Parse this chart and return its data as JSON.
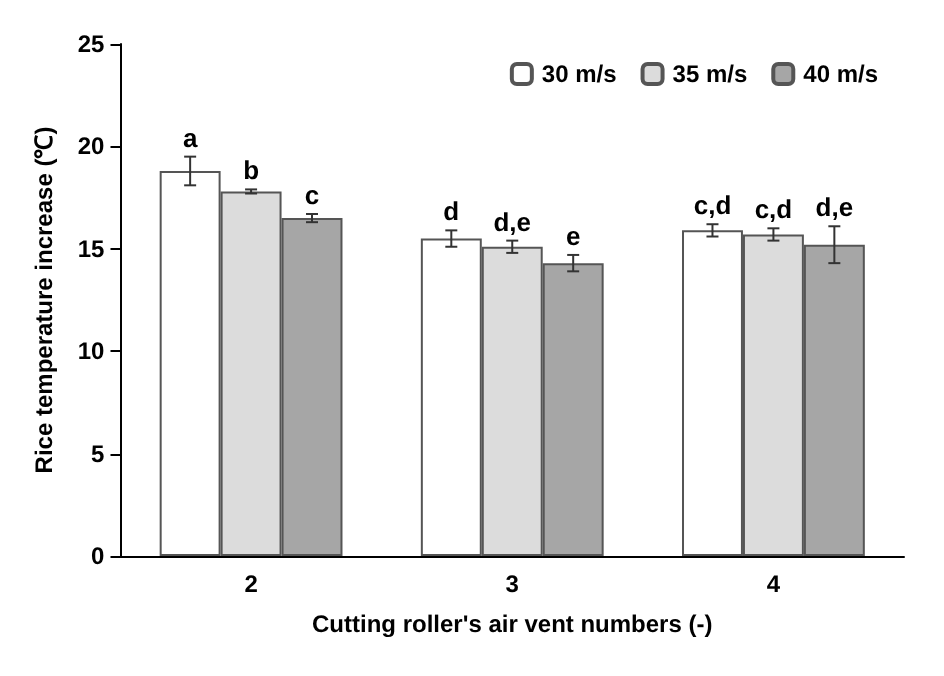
{
  "chart_data": {
    "type": "bar",
    "xlabel": "Cutting roller's air vent numbers (-)",
    "ylabel": "Rice temperature increase (℃)",
    "categories": [
      "2",
      "3",
      "4"
    ],
    "series": [
      {
        "name": "30 m/s",
        "color": "#ffffff",
        "values": [
          18.8,
          15.5,
          15.9
        ],
        "errors": [
          0.7,
          0.4,
          0.3
        ],
        "value_labels": [
          "a",
          "d",
          "c,d"
        ]
      },
      {
        "name": "35 m/s",
        "color": "#dcdcdc",
        "values": [
          17.8,
          15.1,
          15.7
        ],
        "errors": [
          0.1,
          0.3,
          0.3
        ],
        "value_labels": [
          "b",
          "d,e",
          "c,d"
        ]
      },
      {
        "name": "40 m/s",
        "color": "#a6a6a6",
        "values": [
          16.5,
          14.3,
          15.2
        ],
        "errors": [
          0.2,
          0.4,
          0.9
        ],
        "value_labels": [
          "c",
          "e",
          "d,e"
        ]
      }
    ],
    "ylim": [
      0,
      25
    ],
    "yticks": [
      0,
      5,
      10,
      15,
      20,
      25
    ],
    "grid": false,
    "legend": "top right"
  }
}
